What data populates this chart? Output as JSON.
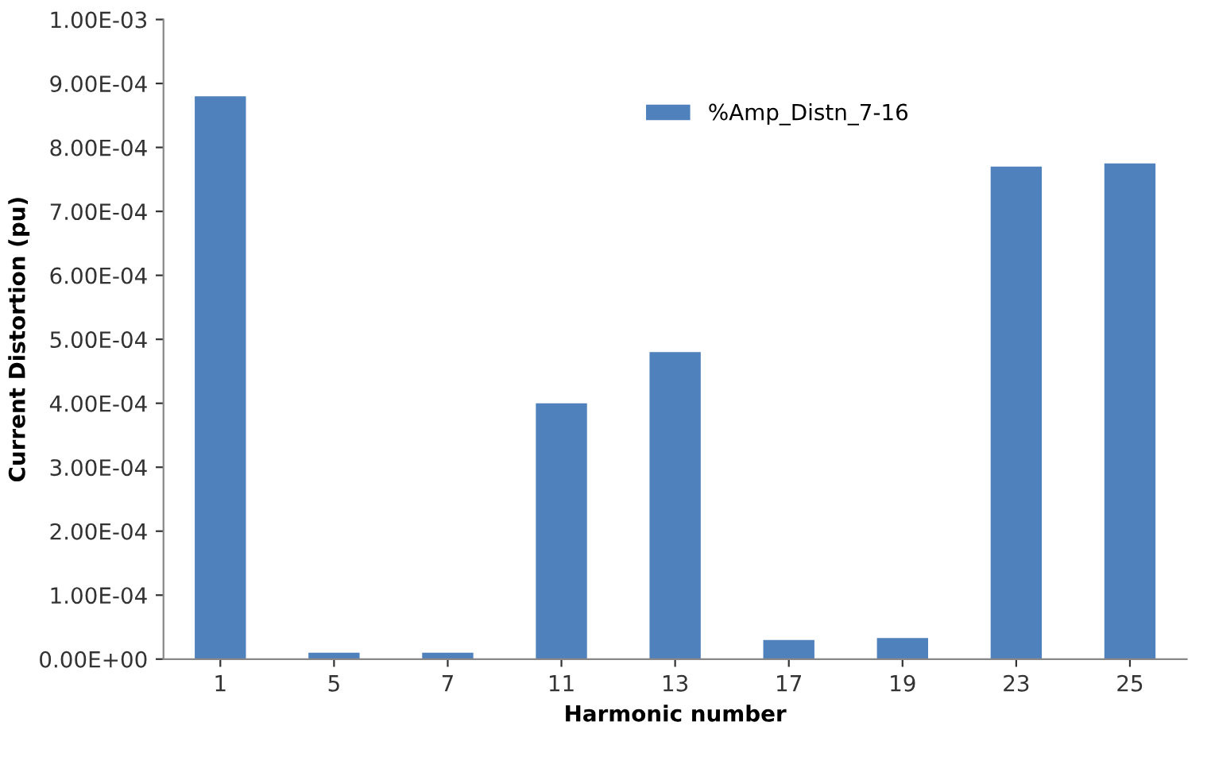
{
  "chart_data": {
    "type": "bar",
    "xlabel": "Harmonic number",
    "ylabel": "Current Distortion (pu)",
    "categories": [
      "1",
      "5",
      "7",
      "11",
      "13",
      "17",
      "19",
      "23",
      "25"
    ],
    "series": [
      {
        "name": "%Amp_Distn_7-16",
        "color": "#4f81bd",
        "values": [
          0.00088,
          1e-05,
          1e-05,
          0.0004,
          0.00048,
          3e-05,
          3.3e-05,
          0.00077,
          0.000775
        ]
      }
    ],
    "ylim": [
      0,
      0.001
    ],
    "yticks": [
      {
        "value": 0,
        "label": "0.00E+00"
      },
      {
        "value": 0.0001,
        "label": "1.00E-04"
      },
      {
        "value": 0.0002,
        "label": "2.00E-04"
      },
      {
        "value": 0.0003,
        "label": "3.00E-04"
      },
      {
        "value": 0.0004,
        "label": "4.00E-04"
      },
      {
        "value": 0.0005,
        "label": "5.00E-04"
      },
      {
        "value": 0.0006,
        "label": "6.00E-04"
      },
      {
        "value": 0.0007,
        "label": "7.00E-04"
      },
      {
        "value": 0.0008,
        "label": "8.00E-04"
      },
      {
        "value": 0.0009,
        "label": "9.00E-04"
      },
      {
        "value": 0.001,
        "label": "1.00E-03"
      }
    ],
    "grid": false,
    "legend": "top"
  }
}
